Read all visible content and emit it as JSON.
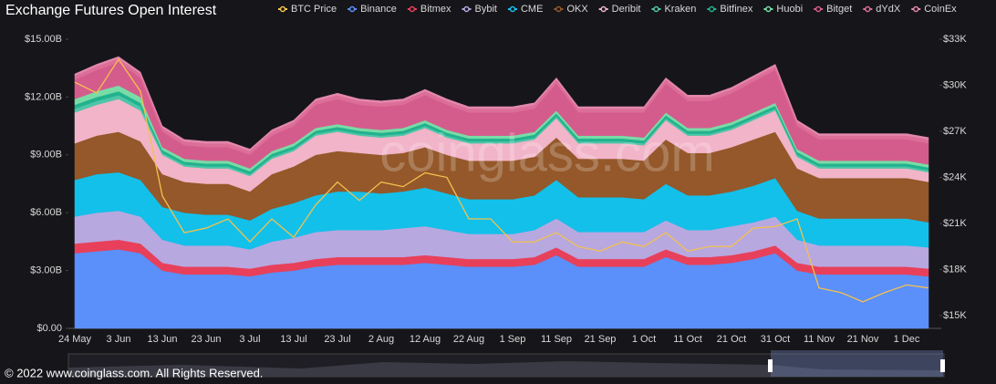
{
  "chart_data": {
    "type": "area",
    "stacked": true,
    "title": "Exchange  Futures Open Interest",
    "watermark": "coinglass.com",
    "footer": "© 2022 www.coinglass.com. All Rights Reserved.",
    "categories": [
      "24 May",
      null,
      "3 Jun",
      null,
      "13 Jun",
      null,
      "23 Jun",
      null,
      "3 Jul",
      null,
      "13 Jul",
      null,
      "23 Jul",
      null,
      "2 Aug",
      null,
      "12 Aug",
      null,
      "22 Aug",
      null,
      "1 Sep",
      null,
      "11 Sep",
      null,
      "21 Sep",
      null,
      "1 Oct",
      null,
      "11 Oct",
      null,
      "21 Oct",
      null,
      "31 Oct",
      null,
      "11 Nov",
      null,
      "21 Nov",
      null,
      "1 Dec",
      null
    ],
    "ylim": [
      0,
      15
    ],
    "yticks": [
      {
        "value": 0,
        "label": "$0.00"
      },
      {
        "value": 3,
        "label": "$3.00B"
      },
      {
        "value": 6,
        "label": "$6.00B"
      },
      {
        "value": 9,
        "label": "$9.00B"
      },
      {
        "value": 12,
        "label": "$12.00B"
      },
      {
        "value": 15,
        "label": "$15.00B"
      }
    ],
    "y2lim": [
      14.17,
      33
    ],
    "y2ticks": [
      {
        "value": 15,
        "label": "$15K"
      },
      {
        "value": 18,
        "label": "$18K"
      },
      {
        "value": 21,
        "label": "$21K"
      },
      {
        "value": 24,
        "label": "$24K"
      },
      {
        "value": 27,
        "label": "$27K"
      },
      {
        "value": 30,
        "label": "$30K"
      },
      {
        "value": 33,
        "label": "$33K"
      }
    ],
    "legend": "top-right",
    "series": [
      {
        "name": "BTC Price",
        "type": "line",
        "axis": "y2",
        "color": "#f2c14e",
        "values": [
          30.2,
          29.5,
          31.7,
          29.6,
          22.8,
          20.4,
          20.7,
          21.3,
          19.8,
          21.3,
          20.1,
          22.2,
          23.7,
          22.5,
          23.7,
          23.4,
          24.3,
          24.0,
          21.3,
          21.3,
          19.8,
          19.8,
          20.4,
          19.5,
          19.2,
          19.8,
          19.5,
          20.4,
          19.2,
          19.5,
          19.5,
          20.7,
          20.8,
          21.3,
          16.8,
          16.5,
          15.9,
          16.5,
          17.0,
          16.8
        ]
      },
      {
        "name": "Binance",
        "color": "#5b8ff9",
        "values": [
          3.9,
          4.0,
          4.1,
          3.9,
          3.0,
          2.8,
          2.8,
          2.8,
          2.7,
          2.9,
          3.0,
          3.2,
          3.3,
          3.3,
          3.3,
          3.3,
          3.4,
          3.3,
          3.2,
          3.2,
          3.2,
          3.3,
          3.8,
          3.2,
          3.2,
          3.2,
          3.2,
          3.7,
          3.3,
          3.3,
          3.4,
          3.6,
          3.9,
          3.0,
          2.8,
          2.8,
          2.8,
          2.8,
          2.8,
          2.7
        ]
      },
      {
        "name": "Bitmex",
        "color": "#e8405a",
        "values": [
          0.5,
          0.5,
          0.5,
          0.5,
          0.4,
          0.4,
          0.4,
          0.4,
          0.4,
          0.4,
          0.4,
          0.4,
          0.4,
          0.4,
          0.4,
          0.4,
          0.4,
          0.4,
          0.4,
          0.4,
          0.4,
          0.4,
          0.4,
          0.4,
          0.4,
          0.4,
          0.4,
          0.4,
          0.4,
          0.4,
          0.4,
          0.4,
          0.4,
          0.4,
          0.4,
          0.4,
          0.4,
          0.4,
          0.4,
          0.4
        ]
      },
      {
        "name": "Bybit",
        "color": "#b8a8e0",
        "values": [
          1.4,
          1.5,
          1.5,
          1.4,
          1.2,
          1.1,
          1.1,
          1.1,
          1.0,
          1.2,
          1.3,
          1.4,
          1.4,
          1.4,
          1.4,
          1.5,
          1.5,
          1.4,
          1.3,
          1.3,
          1.3,
          1.4,
          1.5,
          1.4,
          1.4,
          1.4,
          1.4,
          1.5,
          1.4,
          1.4,
          1.5,
          1.5,
          1.5,
          1.2,
          1.1,
          1.1,
          1.1,
          1.1,
          1.1,
          1.1
        ]
      },
      {
        "name": "CME",
        "color": "#13c0ea",
        "values": [
          1.9,
          2.0,
          2.0,
          1.9,
          1.7,
          1.7,
          1.6,
          1.6,
          1.5,
          1.7,
          1.8,
          1.9,
          2.0,
          2.0,
          1.9,
          1.9,
          2.0,
          1.9,
          1.8,
          1.8,
          1.8,
          1.8,
          2.0,
          1.8,
          1.8,
          1.8,
          1.7,
          1.9,
          1.8,
          1.8,
          1.8,
          1.9,
          2.0,
          1.5,
          1.4,
          1.4,
          1.4,
          1.4,
          1.4,
          1.3
        ]
      },
      {
        "name": "OKX",
        "color": "#94582a",
        "values": [
          1.9,
          2.0,
          2.1,
          2.0,
          1.7,
          1.6,
          1.6,
          1.6,
          1.5,
          1.8,
          1.9,
          2.1,
          2.1,
          2.0,
          2.0,
          2.0,
          2.1,
          2.0,
          2.0,
          2.0,
          2.0,
          2.0,
          2.2,
          2.0,
          2.0,
          2.0,
          2.0,
          2.3,
          2.2,
          2.2,
          2.3,
          2.4,
          2.4,
          2.2,
          2.1,
          2.1,
          2.1,
          2.1,
          2.1,
          2.1
        ]
      },
      {
        "name": "Deribit",
        "color": "#f2b4c8",
        "values": [
          1.6,
          1.6,
          1.7,
          1.6,
          1.0,
          0.8,
          0.8,
          0.8,
          0.8,
          0.8,
          0.8,
          1.0,
          1.0,
          0.9,
          0.9,
          0.9,
          1.0,
          0.9,
          0.9,
          0.9,
          0.9,
          0.9,
          1.0,
          0.8,
          0.8,
          0.8,
          0.8,
          1.0,
          0.9,
          0.9,
          0.9,
          1.0,
          1.1,
          0.6,
          0.5,
          0.5,
          0.5,
          0.5,
          0.5,
          0.5
        ]
      },
      {
        "name": "Kraken",
        "color": "#4fc6a8",
        "values": [
          0.2,
          0.2,
          0.2,
          0.2,
          0.1,
          0.1,
          0.1,
          0.1,
          0.1,
          0.1,
          0.1,
          0.1,
          0.1,
          0.1,
          0.1,
          0.1,
          0.1,
          0.1,
          0.1,
          0.1,
          0.1,
          0.1,
          0.1,
          0.1,
          0.1,
          0.1,
          0.1,
          0.1,
          0.1,
          0.1,
          0.1,
          0.1,
          0.1,
          0.1,
          0.1,
          0.1,
          0.1,
          0.1,
          0.1,
          0.1
        ]
      },
      {
        "name": "Bitfinex",
        "color": "#22b28e",
        "values": [
          0.2,
          0.2,
          0.2,
          0.2,
          0.15,
          0.15,
          0.15,
          0.15,
          0.15,
          0.15,
          0.15,
          0.15,
          0.15,
          0.15,
          0.15,
          0.15,
          0.15,
          0.15,
          0.15,
          0.15,
          0.15,
          0.15,
          0.15,
          0.15,
          0.15,
          0.15,
          0.15,
          0.15,
          0.15,
          0.15,
          0.15,
          0.15,
          0.15,
          0.15,
          0.15,
          0.15,
          0.15,
          0.15,
          0.15,
          0.15
        ]
      },
      {
        "name": "Huobi",
        "color": "#78dca6",
        "values": [
          0.3,
          0.3,
          0.3,
          0.3,
          0.15,
          0.15,
          0.15,
          0.15,
          0.15,
          0.15,
          0.15,
          0.15,
          0.15,
          0.15,
          0.15,
          0.15,
          0.15,
          0.15,
          0.15,
          0.15,
          0.15,
          0.15,
          0.15,
          0.15,
          0.15,
          0.15,
          0.15,
          0.15,
          0.15,
          0.15,
          0.15,
          0.15,
          0.15,
          0.15,
          0.15,
          0.15,
          0.15,
          0.15,
          0.15,
          0.15
        ]
      },
      {
        "name": "Bitget",
        "color": "#d45c8c",
        "values": [
          1.0,
          1.1,
          1.2,
          1.0,
          0.8,
          0.7,
          0.7,
          0.7,
          0.7,
          0.8,
          0.9,
          1.2,
          1.3,
          1.2,
          1.2,
          1.2,
          1.3,
          1.3,
          1.2,
          1.2,
          1.2,
          1.2,
          1.4,
          1.2,
          1.2,
          1.2,
          1.3,
          1.5,
          1.4,
          1.4,
          1.5,
          1.6,
          1.7,
          1.2,
          1.1,
          1.1,
          1.1,
          1.1,
          1.1,
          1.1
        ]
      },
      {
        "name": "dYdX",
        "color": "#dc6e98",
        "values": [
          0.2,
          0.2,
          0.2,
          0.2,
          0.2,
          0.2,
          0.2,
          0.2,
          0.2,
          0.2,
          0.2,
          0.2,
          0.2,
          0.2,
          0.2,
          0.2,
          0.2,
          0.2,
          0.2,
          0.2,
          0.2,
          0.2,
          0.2,
          0.2,
          0.2,
          0.2,
          0.2,
          0.2,
          0.2,
          0.2,
          0.2,
          0.2,
          0.2,
          0.2,
          0.2,
          0.2,
          0.2,
          0.2,
          0.2,
          0.2
        ]
      },
      {
        "name": "CoinEx",
        "color": "#e487ac",
        "values": [
          0.1,
          0.1,
          0.1,
          0.1,
          0.1,
          0.1,
          0.1,
          0.1,
          0.1,
          0.1,
          0.1,
          0.1,
          0.1,
          0.1,
          0.1,
          0.1,
          0.1,
          0.1,
          0.1,
          0.1,
          0.1,
          0.1,
          0.1,
          0.1,
          0.1,
          0.1,
          0.1,
          0.1,
          0.1,
          0.1,
          0.1,
          0.1,
          0.1,
          0.1,
          0.1,
          0.1,
          0.1,
          0.1,
          0.1,
          0.1
        ]
      }
    ]
  }
}
